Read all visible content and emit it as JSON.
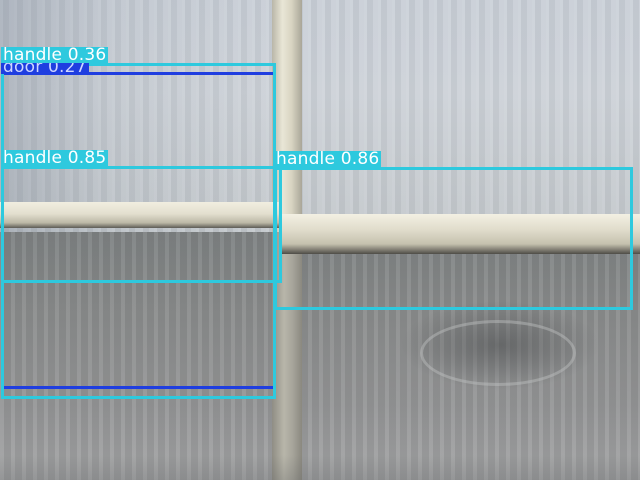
{
  "detections": [
    {
      "label": "handle",
      "score": "0.36",
      "text": "handle 0.36",
      "color": "#2ec9de"
    },
    {
      "label": "door",
      "score": "0.27",
      "text": "door 0.27",
      "color": "#1f3ee0"
    },
    {
      "label": "handle",
      "score": "0.85",
      "text": "handle 0.85",
      "color": "#2ec9de"
    },
    {
      "label": "handle",
      "score": "0.86",
      "text": "handle 0.86",
      "color": "#2ec9de"
    }
  ],
  "colors": {
    "handle_box": "#2ec9de",
    "door_box": "#1f3ee0",
    "label_text": "#ffffff"
  }
}
